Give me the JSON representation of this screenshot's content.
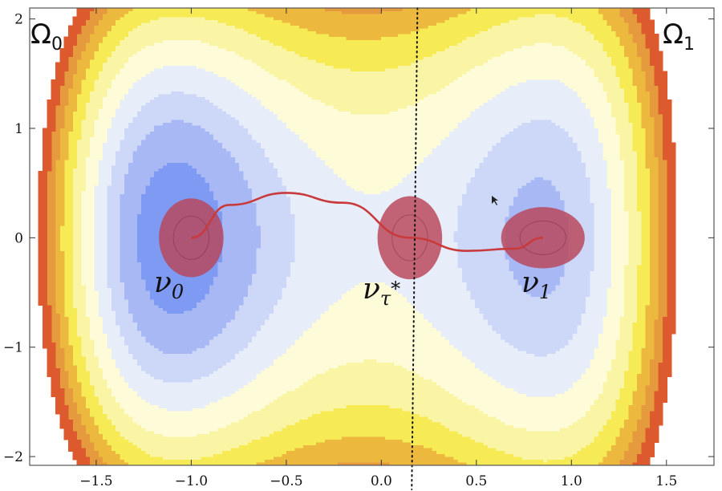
{
  "regions": {
    "left": {
      "symbol": "Ω",
      "sub": "0"
    },
    "right": {
      "symbol": "Ω",
      "sub": "1"
    }
  },
  "measures": {
    "nu0": {
      "symbol": "ν",
      "sub": "0"
    },
    "nutau": {
      "symbol": "ν",
      "sub": "τ",
      "subsup": "*"
    },
    "nu1": {
      "symbol": "ν",
      "sub": "1"
    }
  },
  "axes": {
    "xlim": [
      -1.85,
      1.75
    ],
    "ylim": [
      -2.08,
      2.1
    ],
    "x_ticks": [
      {
        "v": -1.5,
        "label": "−1.5"
      },
      {
        "v": -1.0,
        "label": "−1.0"
      },
      {
        "v": -0.5,
        "label": "−0.5"
      },
      {
        "v": 0.0,
        "label": "0.0"
      },
      {
        "v": 0.5,
        "label": "0.5"
      },
      {
        "v": 1.0,
        "label": "1.0"
      },
      {
        "v": 1.5,
        "label": "1.5"
      }
    ],
    "y_ticks": [
      {
        "v": 2,
        "label": "2"
      },
      {
        "v": 1,
        "label": "1"
      },
      {
        "v": 0,
        "label": "0"
      },
      {
        "v": -1,
        "label": "−1"
      },
      {
        "v": -2,
        "label": "−2"
      }
    ]
  },
  "blobs": [
    {
      "name": "nu0-blob",
      "cx": -1.0,
      "cy": 0.0,
      "rx": 0.17,
      "ry": 0.36
    },
    {
      "name": "nutau-blob",
      "cx": 0.15,
      "cy": 0.0,
      "rx": 0.17,
      "ry": 0.38
    },
    {
      "name": "nu1-blob",
      "cx": 0.85,
      "cy": 0.0,
      "rx": 0.22,
      "ry": 0.28
    }
  ],
  "separatrix_x": 0.17,
  "colors": {
    "deep_blue": "#3e62e8",
    "blue": "#5b7cef",
    "mid_blue": "#7f9af2",
    "light_blue": "#a7b8f5",
    "pale_blue": "#cdd7f8",
    "paler_blue": "#e7edf9",
    "cream": "#fdfbd8",
    "pale_yellow": "#faf4a5",
    "yellow": "#f6ea55",
    "gold": "#ecb83e",
    "orange": "#e69a3e",
    "red_orange": "#dd5a2e",
    "blob": "#b84458",
    "path": "#c83a3c"
  }
}
